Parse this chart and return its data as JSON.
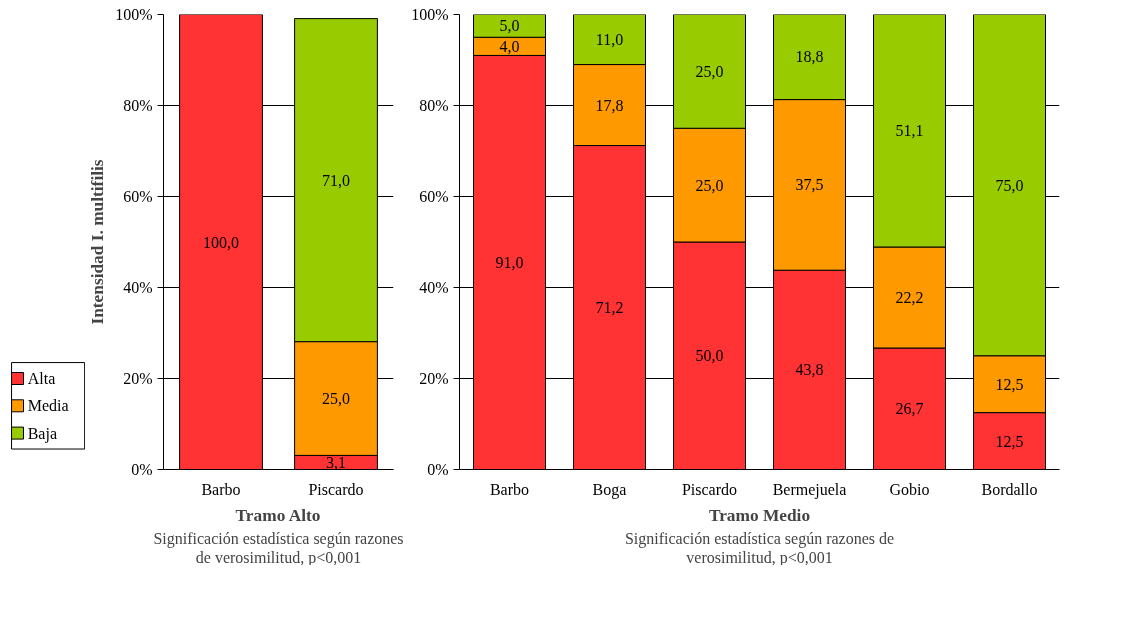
{
  "chart_data": [
    {
      "type": "bar",
      "stacked": true,
      "categories": [
        "Barbo",
        "Piscardo"
      ],
      "series": [
        {
          "name": "Alta",
          "color": "#ff3333",
          "values": [
            100.0,
            3.1
          ],
          "value_labels": [
            "100,0",
            "3,1"
          ]
        },
        {
          "name": "Media",
          "color": "#ff9900",
          "values": [
            null,
            25.0
          ],
          "value_labels": [
            null,
            "25,0"
          ]
        },
        {
          "name": "Baja",
          "color": "#99cc00",
          "values": [
            null,
            71.0
          ],
          "value_labels": [
            null,
            "71,0"
          ]
        }
      ],
      "ylim": [
        0,
        100
      ],
      "yticks": [
        {
          "value": 0,
          "label": "0%"
        },
        {
          "value": 20,
          "label": "20%"
        },
        {
          "value": 40,
          "label": "40%"
        },
        {
          "value": 60,
          "label": "60%"
        },
        {
          "value": 80,
          "label": "80%"
        },
        {
          "value": 100,
          "label": "100%"
        }
      ],
      "ylabel": "Intensidad I. multifilis",
      "xlabel": "Tramo Alto",
      "annotations": [
        "Significación estadística según razones\nde verosimilitud, p<0,001"
      ],
      "grid": "y",
      "legend": "left"
    },
    {
      "type": "bar",
      "stacked": true,
      "categories": [
        "Barbo",
        "Boga",
        "Piscardo",
        "Bermejuela",
        "Gobio",
        "Bordallo"
      ],
      "series": [
        {
          "color": "#ff3333",
          "values": [
            91.0,
            71.2,
            50.0,
            43.8,
            26.7,
            12.5
          ],
          "value_labels": [
            "91,0",
            "71,2",
            "50,0",
            "43,8",
            "26,7",
            "12,5"
          ]
        },
        {
          "color": "#ff9900",
          "values": [
            4.0,
            17.8,
            25.0,
            37.5,
            22.2,
            12.5
          ],
          "value_labels": [
            "4,0",
            "17,8",
            "25,0",
            "37,5",
            "22,2",
            "12,5"
          ]
        },
        {
          "color": "#99cc00",
          "values": [
            5.0,
            11.0,
            25.0,
            18.8,
            51.1,
            75.0
          ],
          "value_labels": [
            "5,0",
            "11,0",
            "25,0",
            "18,8",
            "51,1",
            "75,0"
          ]
        }
      ],
      "ylim": [
        0,
        100
      ],
      "yticks": [
        {
          "value": 0,
          "label": "0%"
        },
        {
          "value": 20,
          "label": "20%"
        },
        {
          "value": 40,
          "label": "40%"
        },
        {
          "value": 60,
          "label": "60%"
        },
        {
          "value": 80,
          "label": "80%"
        },
        {
          "value": 100,
          "label": "100%"
        }
      ],
      "xlabel": "Tramo Medio",
      "annotations": [
        "Significación estadística según razones de\nverosimilitud, p<0,001"
      ],
      "grid": "y"
    }
  ]
}
